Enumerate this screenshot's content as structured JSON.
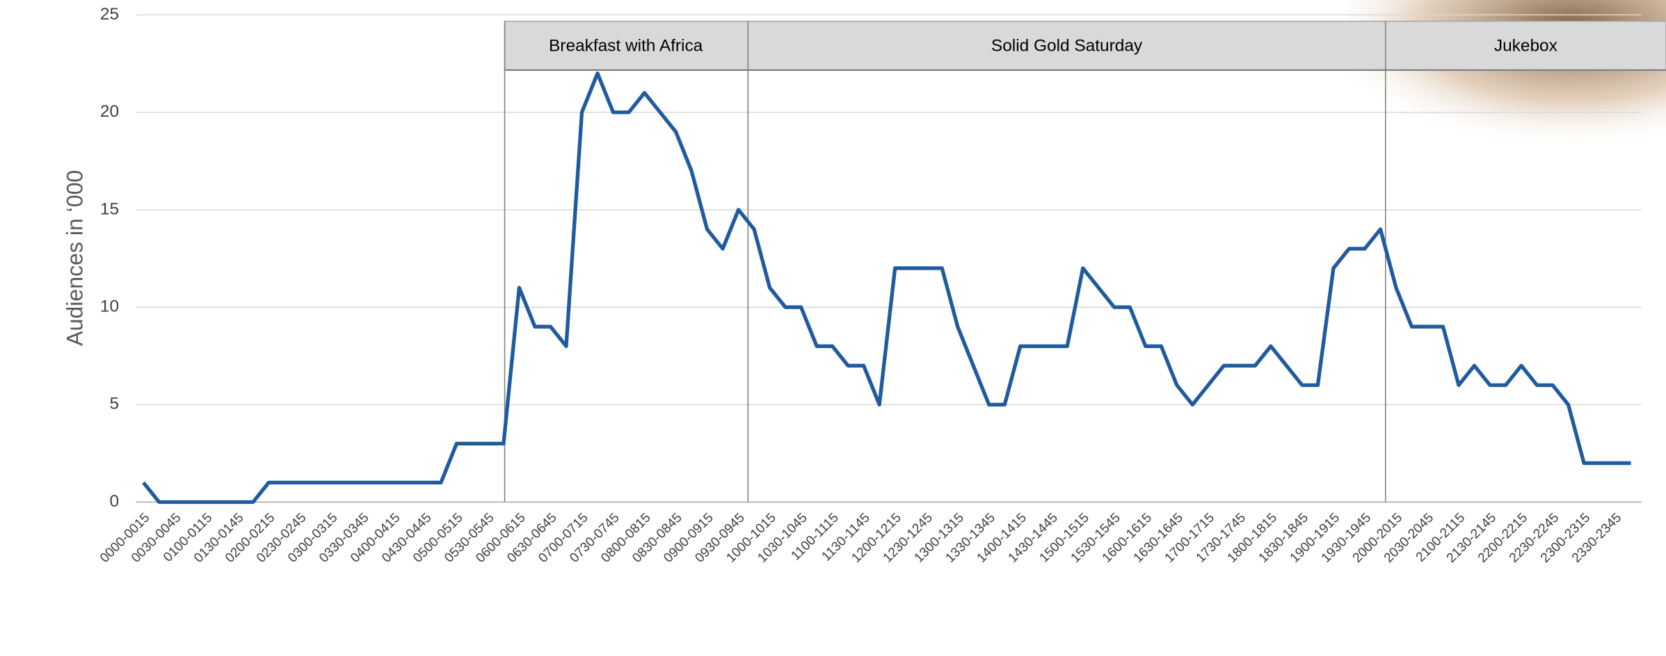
{
  "chart_data": {
    "type": "line",
    "y_label": "Audiences in ‘000",
    "annotations": [
      "Breakfast with Africa",
      "Solid Gold Saturday",
      "Jukebox"
    ],
    "categories": [
      "0000-0015",
      null,
      "0030-0045",
      null,
      "0100-0115",
      null,
      "0130-0145",
      null,
      "0200-0215",
      null,
      "0230-0245",
      null,
      "0300-0315",
      null,
      "0330-0345",
      null,
      "0400-0415",
      null,
      "0430-0445",
      null,
      "0500-0515",
      null,
      "0530-0545",
      null,
      "0600-0615",
      null,
      "0630-0645",
      null,
      "0700-0715",
      null,
      "0730-0745",
      null,
      "0800-0815",
      null,
      "0830-0845",
      null,
      "0900-0915",
      null,
      "0930-0945",
      null,
      "1000-1015",
      null,
      "1030-1045",
      null,
      "1100-1115",
      null,
      "1130-1145",
      null,
      "1200-1215",
      null,
      "1230-1245",
      null,
      "1300-1315",
      null,
      "1330-1345",
      null,
      "1400-1415",
      null,
      "1430-1445",
      null,
      "1500-1515",
      null,
      "1530-1545",
      null,
      "1600-1615",
      null,
      "1630-1645",
      null,
      "1700-1715",
      null,
      "1730-1745",
      null,
      "1800-1815",
      null,
      "1830-1845",
      null,
      "1900-1915",
      null,
      "1930-1945",
      null,
      "2000-2015",
      null,
      "2030-2045",
      null,
      "2100-2115",
      null,
      "2130-2145",
      null,
      "2200-2215",
      null,
      "2230-2245",
      null,
      "2300-2315",
      null,
      "2330-2345",
      null
    ],
    "values": [
      1,
      0,
      0,
      0,
      0,
      0,
      0,
      0,
      1,
      1,
      1,
      1,
      1,
      1,
      1,
      1,
      1,
      1,
      1,
      1,
      3,
      3,
      3,
      3,
      11,
      9,
      9,
      8,
      20,
      22,
      20,
      20,
      21,
      20,
      19,
      17,
      14,
      13,
      15,
      14,
      11,
      10,
      10,
      8,
      8,
      7,
      7,
      5,
      12,
      12,
      12,
      12,
      9,
      7,
      5,
      5,
      8,
      8,
      8,
      8,
      12,
      11,
      10,
      10,
      8,
      8,
      6,
      5,
      6,
      7,
      7,
      7,
      8,
      7,
      6,
      6,
      12,
      13,
      13,
      14,
      11,
      9,
      9,
      9,
      6,
      7,
      6,
      6,
      7,
      6,
      6,
      5,
      2,
      2,
      2,
      2
    ],
    "color": "#1f5b9e",
    "ylim": [
      0,
      25
    ],
    "yticks": [
      0,
      5,
      10,
      15,
      20,
      25
    ],
    "grid": true
  }
}
